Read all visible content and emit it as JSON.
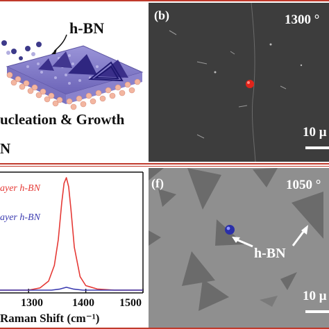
{
  "schematic": {
    "hbn_label": "h-BN",
    "growth_text": "ucleation & Growth",
    "bottom_text": "N"
  },
  "panel_b": {
    "label": "(b)",
    "temperature": "1300 °",
    "scale_bar": "10 μ"
  },
  "raman": {
    "legend_red": "ayer h-BN",
    "legend_blue": "ayer h-BN",
    "xlabel": "Raman Shift (cm⁻¹)",
    "xticks": [
      "1300",
      "1400",
      "1500"
    ]
  },
  "panel_f": {
    "label": "(f)",
    "temperature": "1050 °",
    "hbn_label": "h-BN",
    "scale_bar": "10 μ"
  },
  "chart_data": {
    "type": "line",
    "title": "",
    "xlabel": "Raman Shift (cm⁻¹)",
    "ylabel": "",
    "xlim": [
      1250,
      1500
    ],
    "xticks": [
      1300,
      1400,
      1500
    ],
    "series": [
      {
        "name": "ayer h-BN",
        "color": "#e53935",
        "x": [
          1250,
          1300,
          1320,
          1335,
          1345,
          1352,
          1358,
          1362,
          1366,
          1370,
          1374,
          1380,
          1390,
          1400,
          1420,
          1450,
          1500
        ],
        "y": [
          0.0,
          0.0,
          0.02,
          0.08,
          0.22,
          0.45,
          0.78,
          0.95,
          1.0,
          0.92,
          0.72,
          0.38,
          0.12,
          0.04,
          0.01,
          0.0,
          0.0
        ]
      },
      {
        "name": "ayer h-BN",
        "color": "#3b3bb0",
        "x": [
          1250,
          1340,
          1355,
          1366,
          1378,
          1395,
          1500
        ],
        "y": [
          0.0,
          0.0,
          0.01,
          0.025,
          0.01,
          0.0,
          0.0
        ]
      }
    ]
  }
}
